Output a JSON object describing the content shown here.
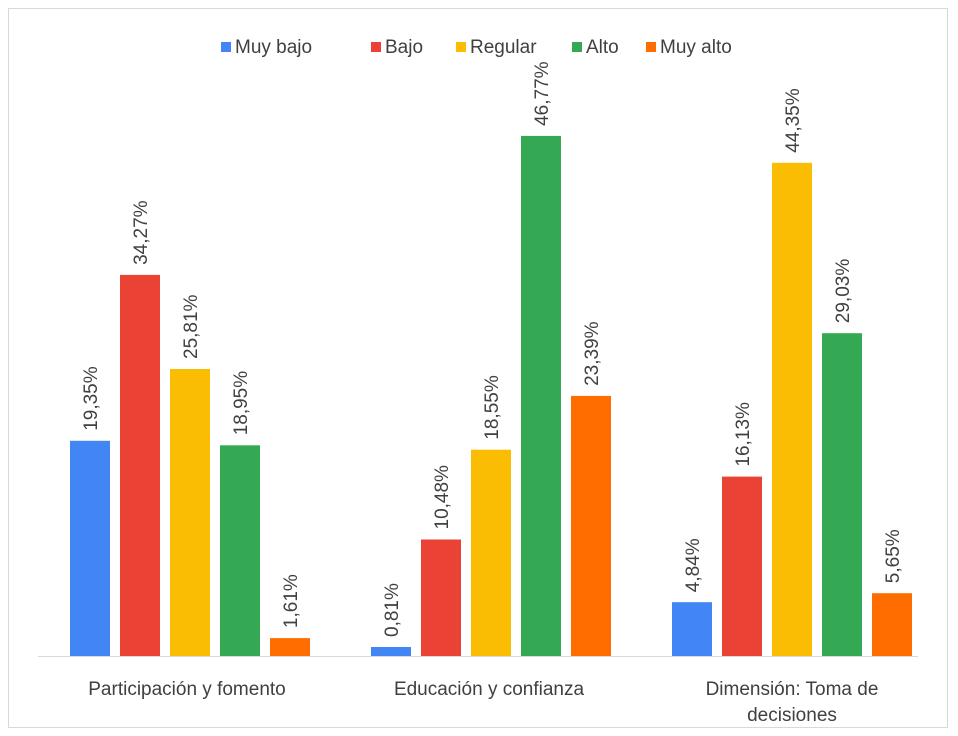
{
  "chart_data": {
    "type": "bar",
    "categories": [
      [
        "Participación y fomento"
      ],
      [
        "Educación y confianza"
      ],
      [
        "Dimensión: Toma de",
        "decisiones"
      ]
    ],
    "series": [
      {
        "name": "Muy bajo",
        "color": "#4285F4",
        "values": [
          19.35,
          0.81,
          4.84
        ],
        "labels": [
          "19,35%",
          "0,81%",
          "4,84%"
        ]
      },
      {
        "name": "Bajo",
        "color": "#EA4335",
        "values": [
          34.27,
          10.48,
          16.13
        ],
        "labels": [
          "34,27%",
          "10,48%",
          "16,13%"
        ]
      },
      {
        "name": "Regular",
        "color": "#FBBC04",
        "values": [
          25.81,
          18.55,
          44.35
        ],
        "labels": [
          "25,81%",
          "18,55%",
          "44,35%"
        ]
      },
      {
        "name": "Alto",
        "color": "#34A853",
        "values": [
          18.95,
          46.77,
          29.03
        ],
        "labels": [
          "18,95%",
          "46,77%",
          "29,03%"
        ]
      },
      {
        "name": "Muy alto",
        "color": "#FF6D01",
        "values": [
          1.61,
          23.39,
          5.65
        ],
        "labels": [
          "1,61%",
          "23,39%",
          "5,65%"
        ]
      }
    ],
    "ylim": [
      0,
      50
    ],
    "legend": "top",
    "grid": false
  }
}
